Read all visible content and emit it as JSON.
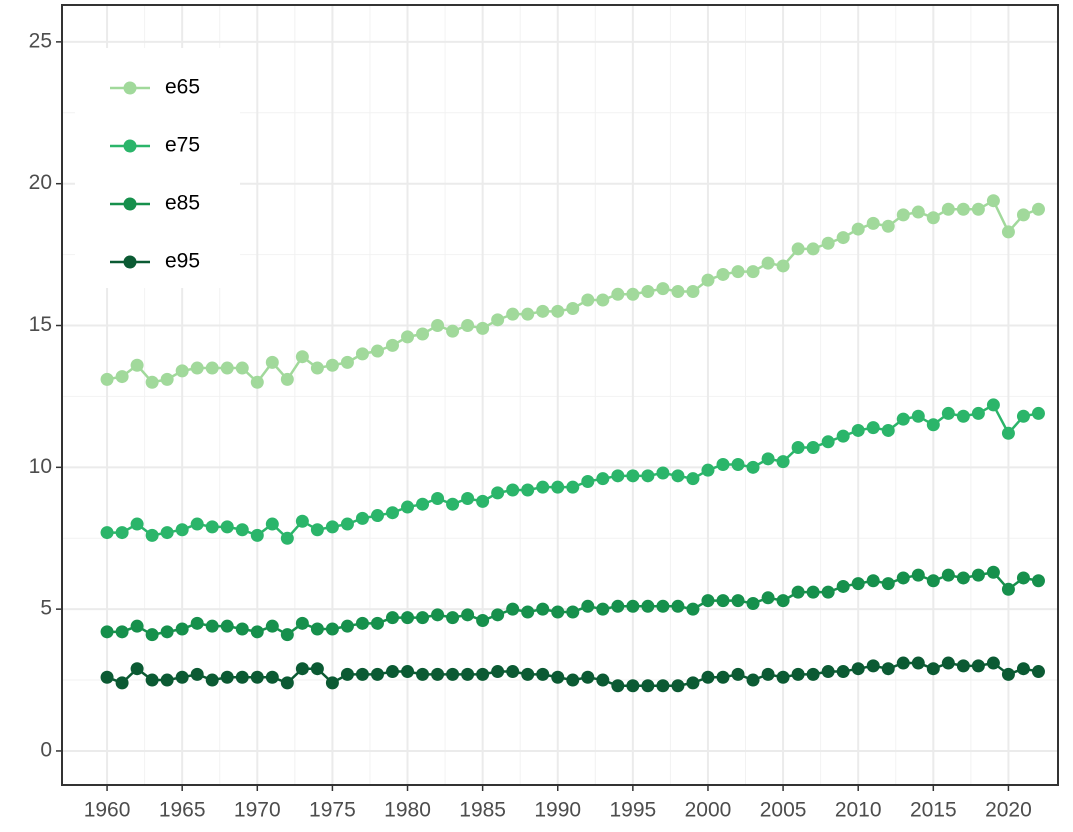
{
  "chart_data": {
    "type": "line",
    "x": [
      1960,
      1961,
      1962,
      1963,
      1964,
      1965,
      1966,
      1967,
      1968,
      1969,
      1970,
      1971,
      1972,
      1973,
      1974,
      1975,
      1976,
      1977,
      1978,
      1979,
      1980,
      1981,
      1982,
      1983,
      1984,
      1985,
      1986,
      1987,
      1988,
      1989,
      1990,
      1991,
      1992,
      1993,
      1994,
      1995,
      1996,
      1997,
      1998,
      1999,
      2000,
      2001,
      2002,
      2003,
      2004,
      2005,
      2006,
      2007,
      2008,
      2009,
      2010,
      2011,
      2012,
      2013,
      2014,
      2015,
      2016,
      2017,
      2018,
      2019,
      2020,
      2021,
      2022
    ],
    "series": [
      {
        "name": "e65",
        "color": "#a1d99b",
        "values": [
          13.1,
          13.2,
          13.6,
          13.0,
          13.1,
          13.4,
          13.5,
          13.5,
          13.5,
          13.5,
          13.0,
          13.7,
          13.1,
          13.9,
          13.5,
          13.6,
          13.7,
          14.0,
          14.1,
          14.3,
          14.6,
          14.7,
          15.0,
          14.8,
          15.0,
          14.9,
          15.2,
          15.4,
          15.4,
          15.5,
          15.5,
          15.6,
          15.9,
          15.9,
          16.1,
          16.1,
          16.2,
          16.3,
          16.2,
          16.2,
          16.6,
          16.8,
          16.9,
          16.9,
          17.2,
          17.1,
          17.7,
          17.7,
          17.9,
          18.1,
          18.4,
          18.6,
          18.5,
          18.9,
          19.0,
          18.8,
          19.1,
          19.1,
          19.1,
          19.4,
          18.3,
          18.9,
          19.1
        ]
      },
      {
        "name": "e75",
        "color": "#2bb56a",
        "values": [
          7.7,
          7.7,
          8.0,
          7.6,
          7.7,
          7.8,
          8.0,
          7.9,
          7.9,
          7.8,
          7.6,
          8.0,
          7.5,
          8.1,
          7.8,
          7.9,
          8.0,
          8.2,
          8.3,
          8.4,
          8.6,
          8.7,
          8.9,
          8.7,
          8.9,
          8.8,
          9.1,
          9.2,
          9.2,
          9.3,
          9.3,
          9.3,
          9.5,
          9.6,
          9.7,
          9.7,
          9.7,
          9.8,
          9.7,
          9.6,
          9.9,
          10.1,
          10.1,
          10.0,
          10.3,
          10.2,
          10.7,
          10.7,
          10.9,
          11.1,
          11.3,
          11.4,
          11.3,
          11.7,
          11.8,
          11.5,
          11.9,
          11.8,
          11.9,
          12.2,
          11.2,
          11.8,
          11.9
        ]
      },
      {
        "name": "e85",
        "color": "#16904c",
        "values": [
          4.2,
          4.2,
          4.4,
          4.1,
          4.2,
          4.3,
          4.5,
          4.4,
          4.4,
          4.3,
          4.2,
          4.4,
          4.1,
          4.5,
          4.3,
          4.3,
          4.4,
          4.5,
          4.5,
          4.7,
          4.7,
          4.7,
          4.8,
          4.7,
          4.8,
          4.6,
          4.8,
          5.0,
          4.9,
          5.0,
          4.9,
          4.9,
          5.1,
          5.0,
          5.1,
          5.1,
          5.1,
          5.1,
          5.1,
          5.0,
          5.3,
          5.3,
          5.3,
          5.2,
          5.4,
          5.3,
          5.6,
          5.6,
          5.6,
          5.8,
          5.9,
          6.0,
          5.9,
          6.1,
          6.2,
          6.0,
          6.2,
          6.1,
          6.2,
          6.3,
          5.7,
          6.1,
          6.0
        ]
      },
      {
        "name": "e95",
        "color": "#0b5a33",
        "values": [
          2.6,
          2.4,
          2.9,
          2.5,
          2.5,
          2.6,
          2.7,
          2.5,
          2.6,
          2.6,
          2.6,
          2.6,
          2.4,
          2.9,
          2.9,
          2.4,
          2.7,
          2.7,
          2.7,
          2.8,
          2.8,
          2.7,
          2.7,
          2.7,
          2.7,
          2.7,
          2.8,
          2.8,
          2.7,
          2.7,
          2.6,
          2.5,
          2.6,
          2.5,
          2.3,
          2.3,
          2.3,
          2.3,
          2.3,
          2.4,
          2.6,
          2.6,
          2.7,
          2.5,
          2.7,
          2.6,
          2.7,
          2.7,
          2.8,
          2.8,
          2.9,
          3.0,
          2.9,
          3.1,
          3.1,
          2.9,
          3.1,
          3.0,
          3.0,
          3.1,
          2.7,
          2.9,
          2.8
        ]
      }
    ],
    "xlim": [
      1957,
      2023.3
    ],
    "xticks": [
      1960,
      1965,
      1970,
      1975,
      1980,
      1985,
      1990,
      1995,
      2000,
      2005,
      2010,
      2015,
      2020
    ],
    "ylim": [
      -1.2,
      26.3
    ],
    "yticks": [
      0,
      5,
      10,
      15,
      20,
      25
    ],
    "grid": true,
    "legend": "top-left"
  }
}
